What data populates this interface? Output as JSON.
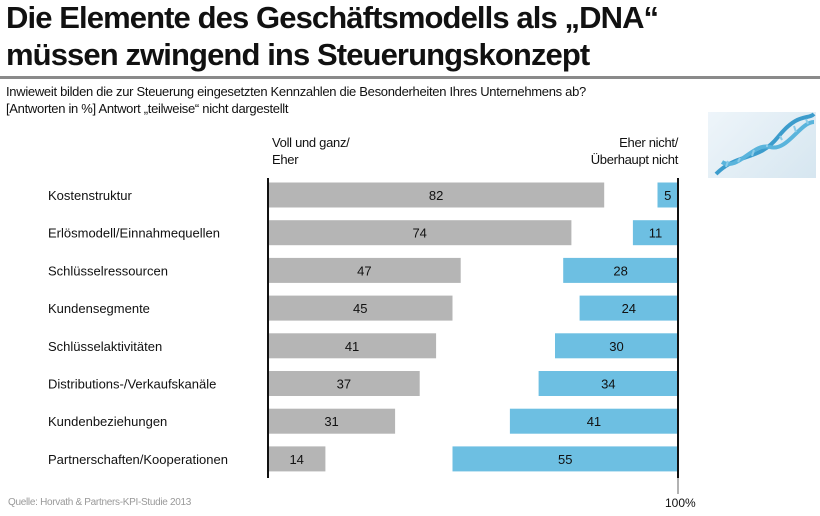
{
  "title_line1": "Die Elemente des Geschäftsmodells als „DNA“",
  "title_line2": "müssen zwingend ins Steuerungskonzept",
  "subtitle_line1": "Inwieweit bilden die zur Steuerung eingesetzten Kennzahlen die Besonderheiten Ihres Unternehmens ab?",
  "subtitle_line2": "[Antworten  in %] Antwort „teilweise“ nicht dargestellt",
  "source": "Quelle: Horvath  & Partners-KPI-Studie 2013",
  "chart_data": {
    "type": "bar",
    "orientation": "horizontal-diverging",
    "categories": [
      "Kostenstruktur",
      "Erlösmodell/Einnahmequellen",
      "Schlüsselressourcen",
      "Kundensegmente",
      "Schlüsselaktivitäten",
      "Distributions-/Verkaufskanäle",
      "Kundenbeziehungen",
      "Partnerschaften/Kooperationen"
    ],
    "series": [
      {
        "name": "Voll und ganz/ Eher",
        "label_line1": "Voll und ganz/",
        "label_line2": "Eher",
        "color": "#b5b5b5",
        "values": [
          82,
          74,
          47,
          45,
          41,
          37,
          31,
          14
        ]
      },
      {
        "name": "Eher nicht/ Überhaupt nicht",
        "label_line1": "Eher nicht/",
        "label_line2": "Überhaupt nicht",
        "color": "#6dbfe2",
        "values": [
          5,
          11,
          28,
          24,
          30,
          34,
          41,
          55
        ]
      }
    ],
    "xlim": [
      0,
      100
    ],
    "end_label": "100%"
  }
}
